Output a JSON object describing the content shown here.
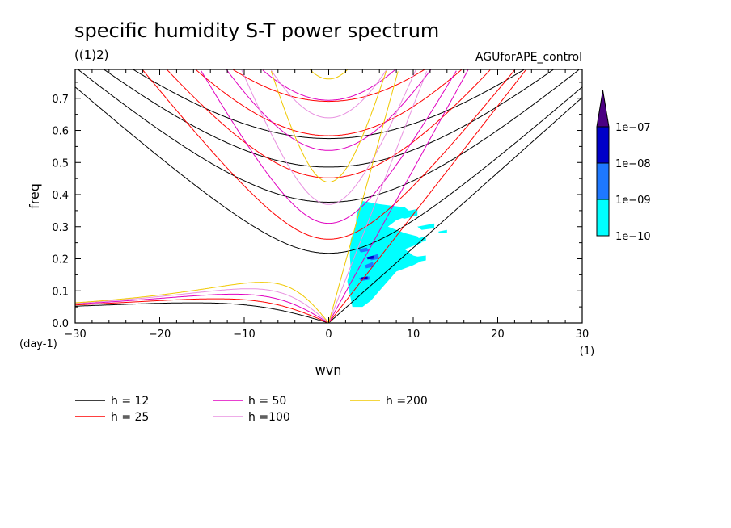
{
  "chart_data": {
    "type": "line",
    "title": "specific humidity S-T power spectrum",
    "subtitle": "((1)2)",
    "run_label": "AGUforAPE_control",
    "xlabel": "wvn",
    "ylabel": "freq",
    "x_unit": "(1)",
    "y_unit": "(day-1)",
    "xlim": [
      -30,
      30
    ],
    "ylim": [
      0,
      0.79
    ],
    "xticks": [
      -30,
      -20,
      -10,
      0,
      10,
      20,
      30
    ],
    "yticks": [
      0.0,
      0.1,
      0.2,
      0.3,
      0.4,
      0.5,
      0.6,
      0.7
    ],
    "series": [
      {
        "name": "h = 12",
        "label": "h = 12",
        "h": 12,
        "color": "#000000"
      },
      {
        "name": "h = 25",
        "label": "h = 25",
        "h": 25,
        "color": "#ff0000"
      },
      {
        "name": "h = 50",
        "label": "h = 50",
        "h": 50,
        "color": "#e000c0"
      },
      {
        "name": "h = 100",
        "label": "h =100",
        "h": 100,
        "color": "#e890e0"
      },
      {
        "name": "h = 200",
        "label": "h =200",
        "h": 200,
        "color": "#f0c800"
      }
    ],
    "colorbar": {
      "labels": [
        "1e-10",
        "1e-09",
        "1e-08",
        "1e-07"
      ],
      "colors": [
        "#00ffff",
        "#1e78ff",
        "#0000c8",
        "#4b0082"
      ]
    },
    "contours": [
      {
        "level": 0,
        "pts": [
          [
            4,
            0.38
          ],
          [
            6,
            0.37
          ],
          [
            9,
            0.36
          ],
          [
            10,
            0.34
          ],
          [
            8,
            0.32
          ],
          [
            7,
            0.3
          ],
          [
            9,
            0.28
          ],
          [
            10.5,
            0.27
          ],
          [
            11,
            0.25
          ],
          [
            9,
            0.23
          ],
          [
            10,
            0.21
          ],
          [
            11.5,
            0.2
          ],
          [
            10,
            0.18
          ],
          [
            8,
            0.16
          ],
          [
            7,
            0.13
          ],
          [
            6,
            0.1
          ],
          [
            5,
            0.07
          ],
          [
            4,
            0.05
          ],
          [
            2.8,
            0.05
          ],
          [
            2.5,
            0.09
          ],
          [
            2.2,
            0.13
          ],
          [
            2.6,
            0.17
          ],
          [
            2.5,
            0.21
          ],
          [
            2.6,
            0.26
          ],
          [
            3.2,
            0.3
          ],
          [
            3.3,
            0.34
          ],
          [
            3.8,
            0.37
          ]
        ]
      },
      {
        "level": 0,
        "pts": [
          [
            8,
            0.33
          ],
          [
            9.5,
            0.35
          ],
          [
            10.5,
            0.355
          ],
          [
            10.5,
            0.335
          ],
          [
            9,
            0.325
          ]
        ]
      },
      {
        "level": 0,
        "pts": [
          [
            10,
            0.26
          ],
          [
            11.5,
            0.27
          ],
          [
            11.5,
            0.255
          ],
          [
            10.5,
            0.25
          ]
        ]
      },
      {
        "level": 0,
        "pts": [
          [
            10,
            0.205
          ],
          [
            11.5,
            0.21
          ],
          [
            11.5,
            0.195
          ],
          [
            10.5,
            0.19
          ]
        ]
      },
      {
        "level": 0,
        "pts": [
          [
            10.5,
            0.3
          ],
          [
            12.5,
            0.31
          ],
          [
            12.5,
            0.295
          ],
          [
            11,
            0.29
          ]
        ]
      },
      {
        "level": 0,
        "pts": [
          [
            13,
            0.285
          ],
          [
            14,
            0.29
          ],
          [
            14,
            0.28
          ],
          [
            13,
            0.28
          ]
        ]
      },
      {
        "level": 1,
        "pts": [
          [
            3.5,
            0.23
          ],
          [
            4.5,
            0.235
          ],
          [
            4.8,
            0.225
          ],
          [
            3.8,
            0.22
          ]
        ]
      },
      {
        "level": 1,
        "pts": [
          [
            4.3,
            0.18
          ],
          [
            5.2,
            0.19
          ],
          [
            5.4,
            0.175
          ],
          [
            4.4,
            0.17
          ]
        ]
      },
      {
        "level": 1,
        "pts": [
          [
            4.8,
            0.205
          ],
          [
            5.8,
            0.215
          ],
          [
            6,
            0.2
          ],
          [
            5,
            0.195
          ]
        ]
      },
      {
        "level": 1,
        "pts": [
          [
            3.6,
            0.14
          ],
          [
            4.8,
            0.145
          ],
          [
            4.8,
            0.135
          ],
          [
            3.8,
            0.13
          ]
        ]
      },
      {
        "level": 2,
        "pts": [
          [
            3.8,
            0.142
          ],
          [
            4.6,
            0.145
          ],
          [
            4.6,
            0.136
          ],
          [
            3.9,
            0.135
          ]
        ]
      },
      {
        "level": 2,
        "pts": [
          [
            4.5,
            0.205
          ],
          [
            5.3,
            0.21
          ],
          [
            5.3,
            0.2
          ],
          [
            4.6,
            0.198
          ]
        ]
      }
    ]
  }
}
